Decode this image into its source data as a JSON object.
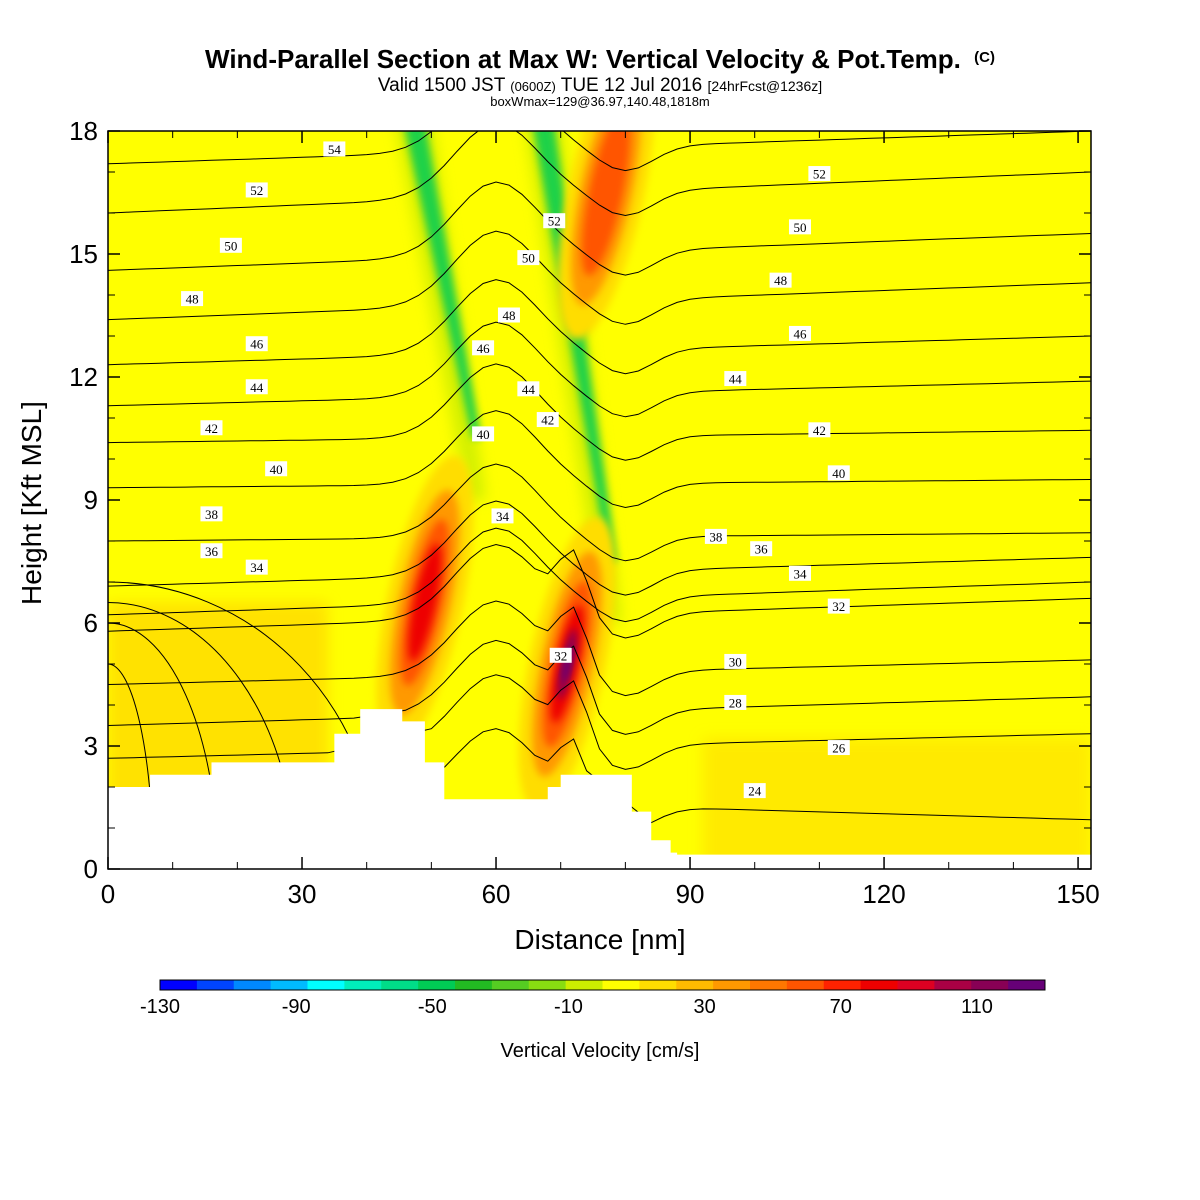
{
  "chart_data": {
    "type": "heatmap",
    "title": "Wind-Parallel Section at Max W: Vertical Velocity & Pot.Temp.",
    "title_mark": "(C)",
    "subtitle": {
      "pre": "Valid 1500 JST",
      "utc": "(0600Z)",
      "date": "TUE 12 Jul 2016",
      "fcst": "[24hrFcst@1236z]"
    },
    "subtitle2": "boxWmax=129@36.97,140.48,1818m",
    "xlabel": "Distance [nm]",
    "ylabel": "Height [Kft MSL]",
    "xlim": [
      0,
      152
    ],
    "ylim": [
      0,
      18
    ],
    "x_ticks": [
      0,
      30,
      60,
      90,
      120,
      150
    ],
    "y_ticks": [
      0,
      3,
      6,
      9,
      12,
      15,
      18
    ],
    "colorbar": {
      "label": "Vertical Velocity [cm/s]",
      "tick_labels": [
        "-130",
        "-90",
        "-50",
        "-10",
        "30",
        "70",
        "110"
      ],
      "tick_values": [
        -130,
        -90,
        -50,
        -10,
        30,
        70,
        110
      ],
      "range": [
        -130,
        130
      ],
      "colors": [
        "#0000ff",
        "#0044ff",
        "#0088ff",
        "#00bbff",
        "#00ffff",
        "#00eebb",
        "#00dd88",
        "#00cc55",
        "#22bb22",
        "#55cc22",
        "#88dd11",
        "#ccee00",
        "#ffff00",
        "#ffdd00",
        "#ffbb00",
        "#ff9900",
        "#ff7700",
        "#ff5500",
        "#ff2200",
        "#ee0000",
        "#dd0022",
        "#aa0044",
        "#880055",
        "#660077"
      ]
    },
    "background_color": "#ffff00",
    "mild_updraft_color": "#ffdd00",
    "updraft_cores": [
      {
        "x": 49,
        "y": 6.5,
        "w_cm_s": 80
      },
      {
        "x": 71,
        "y": 5,
        "w_cm_s": 129
      },
      {
        "x": 77,
        "y": 16.5,
        "w_cm_s": 70
      }
    ],
    "downdraft_bands": [
      {
        "x_bottom": 57,
        "x_top": 47,
        "y_bottom": 9,
        "y_top": 18,
        "w_cm_s": -50
      },
      {
        "x_bottom": 78,
        "x_top": 67,
        "y_bottom": 6,
        "y_top": 18,
        "w_cm_s": -50
      }
    ],
    "terrain_heights_kft": [
      {
        "x": 0,
        "h": 2.0
      },
      {
        "x": 6.5,
        "h": 2.3
      },
      {
        "x": 16,
        "h": 2.6
      },
      {
        "x": 35,
        "h": 3.3
      },
      {
        "x": 39,
        "h": 3.9
      },
      {
        "x": 45.5,
        "h": 3.6
      },
      {
        "x": 49,
        "h": 2.6
      },
      {
        "x": 52,
        "h": 1.7
      },
      {
        "x": 67,
        "h": 1.7
      },
      {
        "x": 68,
        "h": 2.0
      },
      {
        "x": 70,
        "h": 2.3
      },
      {
        "x": 81,
        "h": 1.4
      },
      {
        "x": 84,
        "h": 0.7
      },
      {
        "x": 87,
        "h": 0.4
      },
      {
        "x": 88,
        "h": 0.35
      },
      {
        "x": 152,
        "h": 0.35
      }
    ],
    "theta_contours": [
      {
        "value": 24,
        "y_left": 1.9,
        "y_right": 1.2,
        "labels": [
          {
            "x": 100,
            "y": 1.9
          }
        ]
      },
      {
        "value": 26,
        "y_left": 2.7,
        "y_right": 3.3,
        "labels": [
          {
            "x": 113,
            "y": 2.95
          }
        ]
      },
      {
        "value": 28,
        "y_left": 3.5,
        "y_right": 4.2,
        "labels": [
          {
            "x": 97,
            "y": 4.05
          }
        ]
      },
      {
        "value": 30,
        "y_left": 4.5,
        "y_right": 5.1,
        "labels": [
          {
            "x": 97,
            "y": 5.05
          }
        ]
      },
      {
        "value": 32,
        "y_left": 5.8,
        "y_right": 6.6,
        "labels": [
          {
            "x": 113,
            "y": 6.4
          },
          {
            "x": 70,
            "y": 5.2
          }
        ]
      },
      {
        "value": 34,
        "y_left": 6.2,
        "y_right": 7.0,
        "labels": [
          {
            "x": 23,
            "y": 7.35
          },
          {
            "x": 61,
            "y": 8.6
          },
          {
            "x": 107,
            "y": 7.2
          }
        ]
      },
      {
        "value": 36,
        "y_left": 6.9,
        "y_right": 7.6,
        "labels": [
          {
            "x": 16,
            "y": 7.75
          },
          {
            "x": 101,
            "y": 7.8
          }
        ]
      },
      {
        "value": 38,
        "y_left": 8.0,
        "y_right": 8.2,
        "labels": [
          {
            "x": 16,
            "y": 8.65
          },
          {
            "x": 94,
            "y": 8.1
          }
        ]
      },
      {
        "value": 40,
        "y_left": 9.3,
        "y_right": 9.5,
        "labels": [
          {
            "x": 26,
            "y": 9.75
          },
          {
            "x": 58,
            "y": 10.6
          },
          {
            "x": 113,
            "y": 9.65
          }
        ]
      },
      {
        "value": 42,
        "y_left": 10.4,
        "y_right": 10.7,
        "labels": [
          {
            "x": 16,
            "y": 10.75
          },
          {
            "x": 68,
            "y": 10.95
          },
          {
            "x": 110,
            "y": 10.7
          }
        ]
      },
      {
        "value": 44,
        "y_left": 11.3,
        "y_right": 11.9,
        "labels": [
          {
            "x": 23,
            "y": 11.75
          },
          {
            "x": 65,
            "y": 11.7
          },
          {
            "x": 97,
            "y": 11.95
          }
        ]
      },
      {
        "value": 46,
        "y_left": 12.3,
        "y_right": 13.0,
        "labels": [
          {
            "x": 23,
            "y": 12.8
          },
          {
            "x": 58,
            "y": 12.7
          },
          {
            "x": 107,
            "y": 13.05
          }
        ]
      },
      {
        "value": 48,
        "y_left": 13.4,
        "y_right": 14.3,
        "labels": [
          {
            "x": 13,
            "y": 13.9
          },
          {
            "x": 62,
            "y": 13.5
          },
          {
            "x": 104,
            "y": 14.35
          }
        ]
      },
      {
        "value": 50,
        "y_left": 14.6,
        "y_right": 15.5,
        "labels": [
          {
            "x": 19,
            "y": 15.2
          },
          {
            "x": 65,
            "y": 14.9
          },
          {
            "x": 107,
            "y": 15.65
          }
        ]
      },
      {
        "value": 52,
        "y_left": 16.0,
        "y_right": 17.0,
        "labels": [
          {
            "x": 23,
            "y": 16.55
          },
          {
            "x": 69,
            "y": 15.8
          },
          {
            "x": 110,
            "y": 16.95
          }
        ]
      },
      {
        "value": 54,
        "y_left": 17.2,
        "y_right": 18.0,
        "labels": [
          {
            "x": 35,
            "y": 17.55
          }
        ]
      }
    ],
    "cold_pool_isentropes": [
      {
        "center_x": 0,
        "center_y": 0,
        "radius_x": 7,
        "radius_y": 5
      },
      {
        "center_x": 0,
        "center_y": 0,
        "radius_x": 17,
        "radius_y": 6
      },
      {
        "center_x": 0,
        "center_y": 0,
        "radius_x": 29,
        "radius_y": 6.5
      },
      {
        "center_x": 0,
        "center_y": 0,
        "radius_x": 42,
        "radius_y": 7
      }
    ]
  }
}
